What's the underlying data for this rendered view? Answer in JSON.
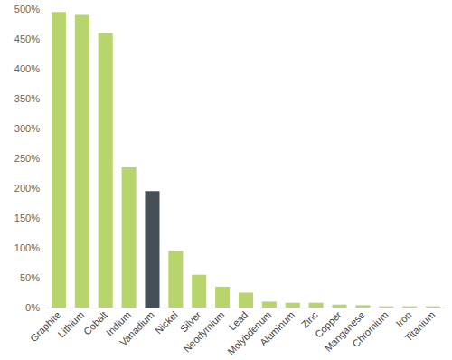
{
  "chart_data": {
    "type": "bar",
    "categories": [
      "Graphite",
      "Lithium",
      "Cobalt",
      "Indium",
      "Vanadium",
      "Nickel",
      "Silver",
      "Neodymium",
      "Lead",
      "Molybdenum",
      "Aluminum",
      "Zinc",
      "Copper",
      "Manganese",
      "Chromium",
      "Iron",
      "Titanium"
    ],
    "values": [
      495,
      490,
      460,
      235,
      195,
      95,
      55,
      35,
      25,
      10,
      8,
      8,
      5,
      4,
      2,
      2,
      2
    ],
    "colors": [
      "#b7d56c",
      "#b7d56c",
      "#b7d56c",
      "#b7d56c",
      "#444f58",
      "#b7d56c",
      "#b7d56c",
      "#b7d56c",
      "#b7d56c",
      "#b7d56c",
      "#b7d56c",
      "#b7d56c",
      "#b7d56c",
      "#b7d56c",
      "#b7d56c",
      "#b7d56c",
      "#b7d56c"
    ],
    "ylim": [
      0,
      500
    ],
    "yticks": [
      {
        "value": 0,
        "label": "0%"
      },
      {
        "value": 50,
        "label": "50%"
      },
      {
        "value": 100,
        "label": "100%"
      },
      {
        "value": 150,
        "label": "150%"
      },
      {
        "value": 200,
        "label": "200%"
      },
      {
        "value": 250,
        "label": "250%"
      },
      {
        "value": 300,
        "label": "300%"
      },
      {
        "value": 350,
        "label": "350%"
      },
      {
        "value": 400,
        "label": "400%"
      },
      {
        "value": 450,
        "label": "450%"
      },
      {
        "value": 500,
        "label": "500%"
      }
    ],
    "grid": false
  }
}
